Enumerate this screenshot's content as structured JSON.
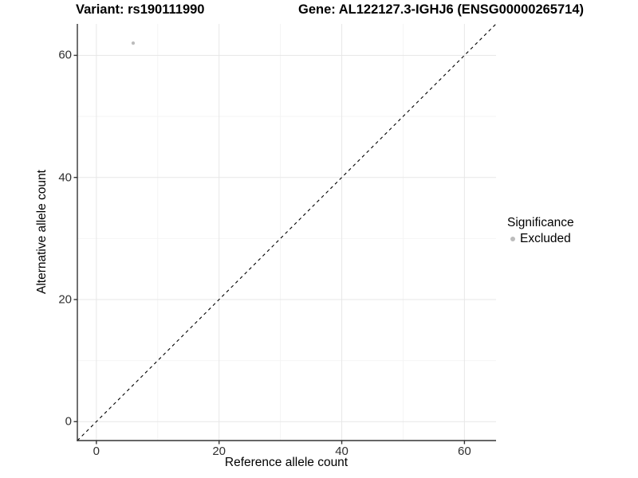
{
  "chart_data": {
    "type": "scatter",
    "title_left": "Variant: rs190111990",
    "title_right": "Gene: AL122127.3-IGHJ6 (ENSG00000265714)",
    "xlabel": "Reference allele count",
    "ylabel": "Alternative allele count",
    "xlim": [
      0,
      62
    ],
    "ylim": [
      0,
      62
    ],
    "expanded_range": [
      -3.1,
      65.15
    ],
    "x_ticks": [
      0,
      20,
      40,
      60
    ],
    "y_ticks": [
      0,
      20,
      40,
      60
    ],
    "minor_ticks": [
      10,
      30,
      50
    ],
    "grid": true,
    "points": [
      {
        "x": 6,
        "y": 62,
        "significance": "Excluded",
        "color": "#bcbcbc",
        "radius": 2.1
      }
    ],
    "reference_line": {
      "equation": "y = x",
      "style": "dashed",
      "color": "#000000",
      "dash": "4,4"
    },
    "legend": {
      "position": "right",
      "title": "Significance",
      "items": [
        {
          "label": "Excluded",
          "color": "#bcbcbc"
        }
      ]
    },
    "colors": {
      "grid_major": "#e7e7e7",
      "grid_minor": "#f4f4f4",
      "axis_line": "#333333",
      "tick_mark": "#333333",
      "tick_label": "#303030"
    }
  }
}
